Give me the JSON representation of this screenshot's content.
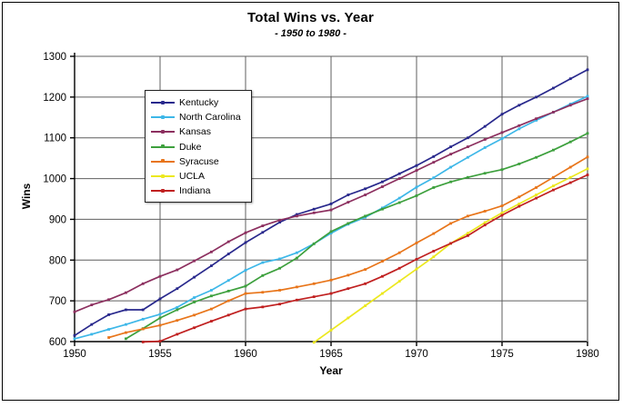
{
  "title": "Total Wins vs. Year",
  "subtitle": "- 1950 to 1980 -",
  "chart_data": {
    "type": "line",
    "title": "Total Wins vs. Year",
    "subtitle": "- 1950 to 1980 -",
    "xlabel": "Year",
    "ylabel": "Wins",
    "xlim": [
      1950,
      1980
    ],
    "ylim": [
      600,
      1300
    ],
    "x_ticks": [
      1950,
      1955,
      1960,
      1965,
      1970,
      1975,
      1980
    ],
    "y_ticks": [
      600,
      700,
      800,
      900,
      1000,
      1100,
      1200,
      1300
    ],
    "grid": "both",
    "gridline_color": "#5f5f5f",
    "axis_color": "#000000",
    "legend_position": "upper-left-inside",
    "x": [
      1950,
      1951,
      1952,
      1953,
      1954,
      1955,
      1956,
      1957,
      1958,
      1959,
      1960,
      1961,
      1962,
      1963,
      1964,
      1965,
      1966,
      1967,
      1968,
      1969,
      1970,
      1971,
      1972,
      1973,
      1974,
      1975,
      1976,
      1977,
      1978,
      1979,
      1980
    ],
    "series": [
      {
        "name": "Kentucky",
        "color": "#28288c",
        "values": [
          615,
          642,
          666,
          678,
          678,
          705,
          730,
          758,
          786,
          815,
          843,
          868,
          893,
          912,
          925,
          938,
          960,
          975,
          992,
          1012,
          1032,
          1054,
          1078,
          1100,
          1128,
          1158,
          1180,
          1200,
          1222,
          1245,
          1267
        ]
      },
      {
        "name": "North Carolina",
        "color": "#3db7e8",
        "values": [
          607,
          618,
          630,
          642,
          655,
          667,
          684,
          708,
          726,
          750,
          775,
          794,
          803,
          818,
          840,
          866,
          888,
          905,
          928,
          952,
          979,
          1002,
          1028,
          1052,
          1076,
          1098,
          1122,
          1143,
          1163,
          1183,
          1202
        ]
      },
      {
        "name": "Kansas",
        "color": "#8c2f5f",
        "values": [
          673,
          690,
          703,
          720,
          742,
          760,
          776,
          798,
          820,
          845,
          867,
          884,
          898,
          908,
          916,
          923,
          942,
          960,
          980,
          1000,
          1020,
          1040,
          1060,
          1078,
          1096,
          1113,
          1130,
          1147,
          1163,
          1180,
          1196
        ]
      },
      {
        "name": "Duke",
        "color": "#3da03d",
        "values": [
          null,
          null,
          null,
          607,
          632,
          658,
          678,
          697,
          712,
          724,
          736,
          762,
          780,
          805,
          840,
          870,
          890,
          908,
          925,
          941,
          958,
          978,
          992,
          1003,
          1013,
          1022,
          1036,
          1052,
          1070,
          1090,
          1111
        ]
      },
      {
        "name": "Syracuse",
        "color": "#e8751a",
        "values": [
          null,
          null,
          610,
          622,
          631,
          640,
          652,
          665,
          680,
          700,
          718,
          721,
          726,
          734,
          742,
          751,
          763,
          777,
          797,
          818,
          842,
          865,
          890,
          908,
          920,
          933,
          955,
          978,
          1003,
          1028,
          1053
        ]
      },
      {
        "name": "UCLA",
        "color": "#ece81f",
        "values": [
          null,
          null,
          null,
          null,
          null,
          null,
          null,
          null,
          null,
          null,
          null,
          null,
          null,
          null,
          598,
          628,
          658,
          688,
          718,
          748,
          778,
          808,
          841,
          866,
          892,
          916,
          938,
          960,
          982,
          1003,
          1024
        ]
      },
      {
        "name": "Indiana",
        "color": "#c02020",
        "values": [
          null,
          null,
          null,
          null,
          599,
          601,
          618,
          634,
          650,
          665,
          680,
          685,
          692,
          702,
          710,
          718,
          730,
          742,
          760,
          780,
          802,
          822,
          841,
          860,
          886,
          910,
          932,
          952,
          972,
          990,
          1009
        ]
      }
    ]
  }
}
